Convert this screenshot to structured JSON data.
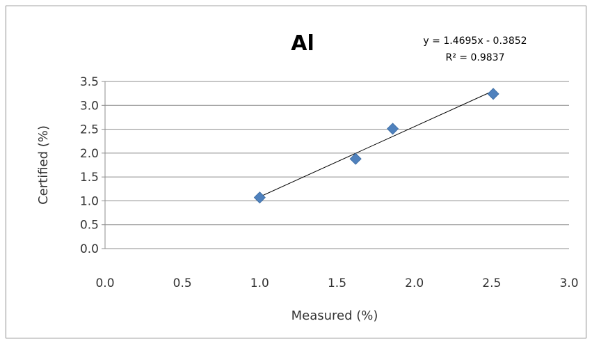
{
  "chart_data": {
    "type": "scatter",
    "title": "Al",
    "xlabel": "Measured (%)",
    "ylabel": "Certified (%)",
    "xlim": [
      0.0,
      3.0
    ],
    "ylim": [
      0.0,
      3.5
    ],
    "x_ticks": [
      "0.0",
      "0.5",
      "1.0",
      "1.5",
      "2.0",
      "2.5",
      "3.0"
    ],
    "y_ticks": [
      "0.0",
      "0.5",
      "1.0",
      "1.5",
      "2.0",
      "2.5",
      "3.0",
      "3.5"
    ],
    "grid": "horizontal",
    "legend": "none",
    "series": [
      {
        "marker": "diamond",
        "color": "#4f81bd",
        "points": [
          {
            "x": 1.0,
            "y": 1.07
          },
          {
            "x": 1.62,
            "y": 1.88
          },
          {
            "x": 1.86,
            "y": 2.51
          },
          {
            "x": 2.51,
            "y": 3.24
          }
        ]
      }
    ],
    "trendline": {
      "type": "linear",
      "slope": 1.4695,
      "intercept": -0.3852,
      "x_range": [
        1.0,
        2.51
      ],
      "equation_label": "y = 1.4695x - 0.3852",
      "r2_label": "R² = 0.9837"
    }
  }
}
